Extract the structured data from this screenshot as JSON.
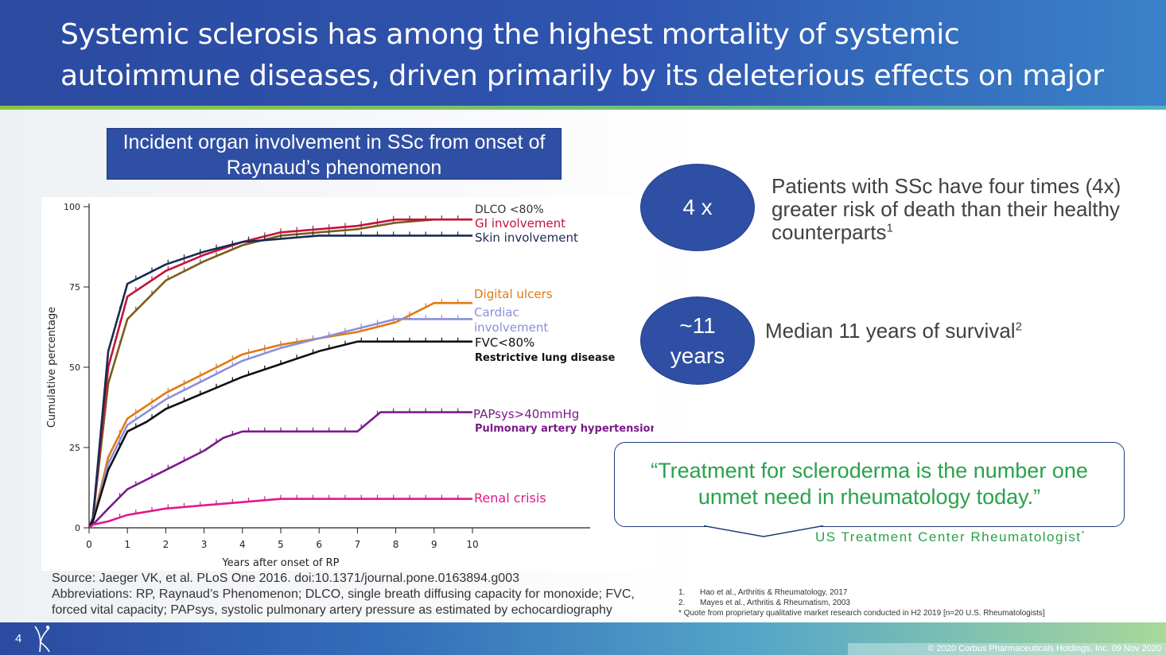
{
  "slide": {
    "title": "Systemic sclerosis has among the highest mortality of systemic autoimmune diseases, driven primarily by its deleterious effects on major organs",
    "chart_title": "Incident organ involvement in SSc from onset of Raynaud’s phenomenon",
    "stats": [
      {
        "badge": "4 x",
        "text": "Patients with SSc have four times (4x) greater risk of death than their healthy counterparts",
        "ref": "1"
      },
      {
        "badge_line1": "~11",
        "badge_line2": "years",
        "text": "Median 11 years of survival",
        "ref": "2"
      }
    ],
    "quote": "“Treatment for scleroderma is the number one unmet need in rheumatology today.”",
    "quote_attribution": "US Treatment Center Rheumatologist",
    "quote_attribution_mark": "*",
    "source": "Source: Jaeger VK, et al. PLoS One 2016. doi:10.1371/journal.pone.0163894.g003",
    "abbreviations": "Abbreviations: RP, Raynaud’s Phenomenon; DLCO, single breath diffusing capacity for monoxide; FVC, forced vital capacity; PAPsys, systolic pulmonary artery pressure as estimated by echocardiography",
    "footnotes": [
      {
        "num": "1.",
        "text": "Hao et al., Arthritis & Rheumatology, 2017"
      },
      {
        "num": "2.",
        "text": "Mayes et al., Arthritis & Rheumatism, 2003"
      },
      {
        "num": "",
        "text": "* Quote from proprietary qualitative market research conducted in H2 2019 [n=20 U.S. Rheumatologists]"
      }
    ],
    "page_number": "4",
    "copyright": "© 2020 Corbus Pharmaceuticals Holdings, Inc. 09 Nov 2020",
    "colors": {
      "header": "#2e4fa3",
      "accent_green": "#2aa24a",
      "stripe": "#8cc63f"
    }
  },
  "chart_data": {
    "type": "line",
    "xlabel": "Years after onset of RP",
    "ylabel": "Cumulative percentage",
    "xlim": [
      0,
      10
    ],
    "ylim": [
      0,
      100
    ],
    "xticks": [
      "0",
      "1",
      "2",
      "3",
      "4",
      "5",
      "6",
      "7",
      "8",
      "9",
      "10"
    ],
    "yticks": [
      "0",
      "25",
      "50",
      "75",
      "100"
    ],
    "series": [
      {
        "name": "DLCO <80%",
        "color": "#7a5c1e",
        "x": [
          0,
          0.1,
          0.5,
          1,
          1.5,
          2,
          3,
          4,
          5,
          6,
          7,
          8,
          9,
          10
        ],
        "y": [
          0,
          3,
          45,
          65,
          71,
          77,
          83,
          88,
          91,
          92,
          93,
          95,
          96,
          96
        ]
      },
      {
        "name": "GI involvement",
        "color": "#c0143c",
        "x": [
          0,
          0.1,
          0.5,
          1,
          1.5,
          2,
          3,
          4,
          5,
          6,
          7,
          8,
          9,
          10
        ],
        "y": [
          0,
          3,
          50,
          72,
          76,
          80,
          85,
          89,
          92,
          93,
          94,
          96,
          96,
          96
        ]
      },
      {
        "name": "Skin involvement",
        "color": "#1a2a52",
        "x": [
          0,
          0.1,
          0.5,
          1,
          1.5,
          2,
          3,
          4,
          5,
          6,
          7,
          8,
          9,
          10
        ],
        "y": [
          0,
          3,
          55,
          76,
          79,
          82,
          86,
          89,
          90,
          91,
          91,
          91,
          91,
          91
        ]
      },
      {
        "name": "Digital ulcers",
        "color": "#e07a10",
        "x": [
          0,
          0.1,
          0.5,
          1,
          1.5,
          2,
          3,
          4,
          5,
          6,
          7,
          8,
          9,
          10
        ],
        "y": [
          0,
          2,
          22,
          34,
          38,
          42,
          48,
          54,
          57,
          59,
          61,
          64,
          70,
          70
        ]
      },
      {
        "name": "Cardiac involvement",
        "color": "#8a8fd8",
        "x": [
          0,
          0.1,
          0.5,
          1,
          1.5,
          2,
          3,
          4,
          5,
          6,
          7,
          8,
          9,
          10
        ],
        "y": [
          0,
          2,
          20,
          32,
          36,
          40,
          46,
          52,
          56,
          59,
          62,
          65,
          65,
          65
        ]
      },
      {
        "name": "FVC<80%",
        "color": "#111111",
        "x": [
          0,
          0.1,
          0.5,
          1,
          1.5,
          2,
          3,
          4,
          5,
          6,
          7,
          8,
          9,
          10
        ],
        "y": [
          0,
          2,
          18,
          30,
          33,
          37,
          42,
          47,
          51,
          55,
          58,
          58,
          58,
          58
        ]
      },
      {
        "name": "PAPsys>40mmHg",
        "color": "#7b1a8a",
        "x": [
          0,
          0.1,
          0.5,
          1,
          1.5,
          2,
          3,
          3.5,
          4,
          5,
          6,
          7,
          7.6,
          8,
          9,
          10
        ],
        "y": [
          0,
          1,
          6,
          12,
          15,
          18,
          24,
          28,
          30,
          30,
          30,
          30,
          36,
          36,
          36,
          36
        ]
      },
      {
        "name": "Renal crisis",
        "color": "#e01a8a",
        "x": [
          0,
          0.1,
          0.5,
          1,
          1.5,
          2,
          3,
          4,
          5,
          6,
          7,
          8,
          9,
          10
        ],
        "y": [
          0,
          1,
          2,
          4,
          5,
          6,
          7,
          8,
          9,
          9,
          9,
          9,
          9,
          9
        ]
      }
    ],
    "legend_labels": [
      {
        "text": "DLCO <80%",
        "color": "#333333"
      },
      {
        "text": "GI involvement",
        "color": "#c0143c"
      },
      {
        "text": "Skin involvement",
        "color": "#1a2a52"
      },
      {
        "text": "Digital ulcers",
        "color": "#e07a10"
      },
      {
        "text": "Cardiac",
        "color": "#8a8fd8"
      },
      {
        "text": "involvement",
        "color": "#8a8fd8"
      },
      {
        "text": "FVC<80%",
        "color": "#111111"
      },
      {
        "text": "Restrictive lung disease",
        "color": "#111111"
      },
      {
        "text": "PAPsys>40mmHg",
        "color": "#7b1a8a"
      },
      {
        "text": "Pulmonary artery hypertension",
        "color": "#7b1a8a"
      },
      {
        "text": "Renal crisis",
        "color": "#e01a8a"
      }
    ]
  }
}
